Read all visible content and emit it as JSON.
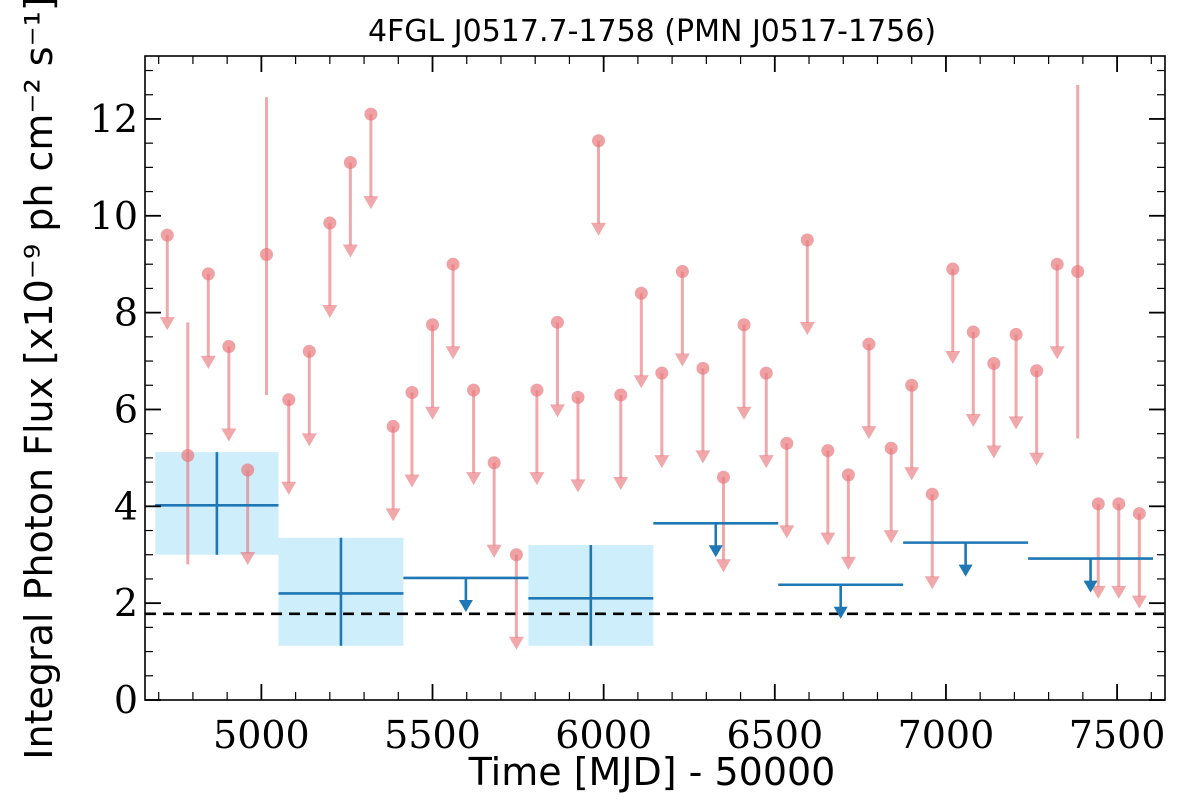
{
  "chart_data": {
    "type": "scatter",
    "title": "4FGL J0517.7-1758 (PMN J0517-1756)",
    "xlabel": "Time [MJD] - 50000",
    "ylabel": "Integral Photon Flux [x10⁻⁹ ph cm⁻² s⁻¹]",
    "xlim": [
      4660,
      7640
    ],
    "ylim": [
      0,
      13.3
    ],
    "xticks": [
      5000,
      5500,
      6000,
      6500,
      7000,
      7500
    ],
    "yticks": [
      0,
      2,
      4,
      6,
      8,
      10,
      12
    ],
    "grid": false,
    "reference_level": 1.78,
    "colors": {
      "short_bin": "#e8797e",
      "long_bin": "#1f77b4",
      "long_bin_band": "#cfeefc",
      "reference": "#000000"
    },
    "series": [
      {
        "marker": "circle",
        "points": [
          {
            "x": 4725,
            "y": 9.6,
            "ul": true
          },
          {
            "x": 4785,
            "y": 5.05,
            "lo": 2.8,
            "hi": 7.8
          },
          {
            "x": 4845,
            "y": 8.8,
            "ul": true
          },
          {
            "x": 4905,
            "y": 7.3,
            "ul": true
          },
          {
            "x": 4960,
            "y": 4.75,
            "ul": true
          },
          {
            "x": 5015,
            "y": 9.2,
            "lo": 6.3,
            "hi": 12.45
          },
          {
            "x": 5080,
            "y": 6.2,
            "ul": true
          },
          {
            "x": 5140,
            "y": 7.2,
            "ul": true
          },
          {
            "x": 5200,
            "y": 9.85,
            "ul": true
          },
          {
            "x": 5260,
            "y": 11.1,
            "ul": true
          },
          {
            "x": 5320,
            "y": 12.1,
            "ul": true
          },
          {
            "x": 5385,
            "y": 5.65,
            "ul": true
          },
          {
            "x": 5440,
            "y": 6.35,
            "ul": true
          },
          {
            "x": 5500,
            "y": 7.75,
            "ul": true
          },
          {
            "x": 5560,
            "y": 9.0,
            "ul": true
          },
          {
            "x": 5620,
            "y": 6.4,
            "ul": true
          },
          {
            "x": 5680,
            "y": 4.9,
            "ul": true
          },
          {
            "x": 5745,
            "y": 3.0,
            "ul": true
          },
          {
            "x": 5805,
            "y": 6.4,
            "ul": true
          },
          {
            "x": 5865,
            "y": 7.8,
            "ul": true
          },
          {
            "x": 5925,
            "y": 6.25,
            "ul": true
          },
          {
            "x": 5985,
            "y": 11.55,
            "ul": true
          },
          {
            "x": 6050,
            "y": 6.3,
            "ul": true
          },
          {
            "x": 6110,
            "y": 8.4,
            "ul": true
          },
          {
            "x": 6170,
            "y": 6.75,
            "ul": true
          },
          {
            "x": 6230,
            "y": 8.85,
            "ul": true
          },
          {
            "x": 6290,
            "y": 6.85,
            "ul": true
          },
          {
            "x": 6350,
            "y": 4.6,
            "ul": true
          },
          {
            "x": 6410,
            "y": 7.75,
            "ul": true
          },
          {
            "x": 6475,
            "y": 6.75,
            "ul": true
          },
          {
            "x": 6535,
            "y": 5.3,
            "ul": true
          },
          {
            "x": 6595,
            "y": 9.5,
            "ul": true
          },
          {
            "x": 6655,
            "y": 5.15,
            "ul": true
          },
          {
            "x": 6715,
            "y": 4.65,
            "ul": true
          },
          {
            "x": 6775,
            "y": 7.35,
            "ul": true
          },
          {
            "x": 6840,
            "y": 5.2,
            "ul": true
          },
          {
            "x": 6900,
            "y": 6.5,
            "ul": true
          },
          {
            "x": 6960,
            "y": 4.25,
            "ul": true
          },
          {
            "x": 7020,
            "y": 8.9,
            "ul": true
          },
          {
            "x": 7080,
            "y": 7.6,
            "ul": true
          },
          {
            "x": 7140,
            "y": 6.95,
            "ul": true
          },
          {
            "x": 7205,
            "y": 7.55,
            "ul": true
          },
          {
            "x": 7265,
            "y": 6.8,
            "ul": true
          },
          {
            "x": 7325,
            "y": 9.0,
            "ul": true
          },
          {
            "x": 7385,
            "y": 8.85,
            "lo": 5.4,
            "hi": 12.7
          },
          {
            "x": 7445,
            "y": 4.05,
            "ul": true
          },
          {
            "x": 7505,
            "y": 4.05,
            "ul": true
          },
          {
            "x": 7565,
            "y": 3.85,
            "ul": true
          }
        ]
      },
      {
        "marker": "crosshair",
        "bins": [
          {
            "x0": 4690,
            "x1": 5050,
            "y": 4.02,
            "lo": 3.0,
            "hi": 5.12,
            "ul": false
          },
          {
            "x0": 5050,
            "x1": 5415,
            "y": 2.2,
            "lo": 1.12,
            "hi": 3.35,
            "ul": false
          },
          {
            "x0": 5415,
            "x1": 5780,
            "y": 2.52,
            "ul": true
          },
          {
            "x0": 5780,
            "x1": 6145,
            "y": 2.1,
            "lo": 1.12,
            "hi": 3.2,
            "ul": false
          },
          {
            "x0": 6145,
            "x1": 6510,
            "y": 3.65,
            "ul": true
          },
          {
            "x0": 6510,
            "x1": 6875,
            "y": 2.38,
            "ul": true
          },
          {
            "x0": 6875,
            "x1": 7240,
            "y": 3.25,
            "ul": true
          },
          {
            "x0": 7240,
            "x1": 7605,
            "y": 2.92,
            "ul": true
          }
        ]
      }
    ]
  }
}
